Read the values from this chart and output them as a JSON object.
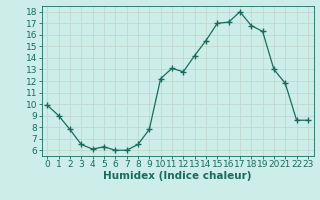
{
  "x": [
    0,
    1,
    2,
    3,
    4,
    5,
    6,
    7,
    8,
    9,
    10,
    11,
    12,
    13,
    14,
    15,
    16,
    17,
    18,
    19,
    20,
    21,
    22,
    23
  ],
  "y": [
    9.9,
    9.0,
    7.8,
    6.5,
    6.1,
    6.3,
    6.0,
    6.0,
    6.5,
    7.8,
    12.2,
    13.1,
    12.8,
    14.2,
    15.5,
    17.0,
    17.1,
    18.0,
    16.8,
    16.3,
    13.0,
    11.8,
    8.6,
    8.6
  ],
  "line_color": "#1a6b5e",
  "marker": "+",
  "marker_size": 4,
  "bg_color": "#cdeee8",
  "grid_color": "#c0d8d0",
  "xlabel": "Humidex (Indice chaleur)",
  "xlim": [
    -0.5,
    23.5
  ],
  "ylim": [
    5.5,
    18.5
  ],
  "yticks": [
    6,
    7,
    8,
    9,
    10,
    11,
    12,
    13,
    14,
    15,
    16,
    17,
    18
  ],
  "xticks": [
    0,
    1,
    2,
    3,
    4,
    5,
    6,
    7,
    8,
    9,
    10,
    11,
    12,
    13,
    14,
    15,
    16,
    17,
    18,
    19,
    20,
    21,
    22,
    23
  ],
  "tick_color": "#1a6b5e",
  "label_color": "#1a6b5e",
  "xlabel_fontsize": 7.5,
  "tick_fontsize": 6.5,
  "linewidth": 0.9
}
